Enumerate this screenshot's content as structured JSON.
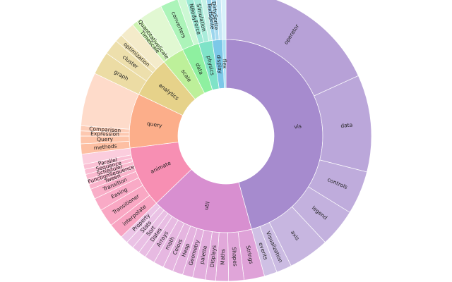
{
  "chart_data": {
    "type": "sunburst",
    "title": "",
    "start_angle_deg": 0,
    "direction": "clockwise",
    "colors": {
      "vis": "#a68bce",
      "util": "#d88fd0",
      "animate": "#f78fb3",
      "query": "#fcae8a",
      "analytics": "#e6d28a",
      "scale": "#bdf09a",
      "data": "#8ef0a0",
      "physics": "#7fe3c8",
      "display": "#7cc8e8",
      "flex": "#a8dff4"
    },
    "inner": [
      {
        "name": "vis",
        "value": 161
      },
      {
        "name": "util",
        "value": 60
      },
      {
        "name": "animate",
        "value": 36
      },
      {
        "name": "query",
        "value": 32
      },
      {
        "name": "analytics",
        "value": 24
      },
      {
        "name": "scale",
        "value": 13
      },
      {
        "name": "data",
        "value": 10
      },
      {
        "name": "physics",
        "value": 8
      },
      {
        "name": "display",
        "value": 6
      },
      {
        "name": "flex",
        "value": 2
      }
    ],
    "outer": [
      {
        "parent": "vis",
        "name": "operator",
        "value": 64
      },
      {
        "parent": "vis",
        "name": "data",
        "value": 38
      },
      {
        "parent": "vis",
        "name": "controls",
        "value": 17
      },
      {
        "parent": "vis",
        "name": "legend",
        "value": 15
      },
      {
        "parent": "vis",
        "name": "axis",
        "value": 16
      },
      {
        "parent": "vis",
        "name": "Visualization",
        "value": 6
      },
      {
        "parent": "vis",
        "name": "events",
        "value": 5
      },
      {
        "parent": "util",
        "name": "Strings",
        "value": 8
      },
      {
        "parent": "util",
        "name": "Shapes",
        "value": 6
      },
      {
        "parent": "util",
        "name": "Maths",
        "value": 5
      },
      {
        "parent": "util",
        "name": "Displays",
        "value": 4
      },
      {
        "parent": "util",
        "name": "palette",
        "value": 5
      },
      {
        "parent": "util",
        "name": "Geometry",
        "value": 4
      },
      {
        "parent": "util",
        "name": "Heap",
        "value": 4
      },
      {
        "parent": "util",
        "name": "Colors",
        "value": 4
      },
      {
        "parent": "util",
        "name": "math",
        "value": 4
      },
      {
        "parent": "util",
        "name": "Arrays",
        "value": 4
      },
      {
        "parent": "util",
        "name": "Dates",
        "value": 3
      },
      {
        "parent": "util",
        "name": "Sort",
        "value": 3
      },
      {
        "parent": "util",
        "name": "Stats",
        "value": 3
      },
      {
        "parent": "util",
        "name": "Property",
        "value": 3
      },
      {
        "parent": "animate",
        "name": "interpolate",
        "value": 6
      },
      {
        "parent": "animate",
        "name": "Transitioner",
        "value": 7
      },
      {
        "parent": "animate",
        "name": "Easing",
        "value": 5
      },
      {
        "parent": "animate",
        "name": "Transition",
        "value": 4
      },
      {
        "parent": "animate",
        "name": "Tween",
        "value": 2
      },
      {
        "parent": "animate",
        "name": "FunctionSequence",
        "value": 2
      },
      {
        "parent": "animate",
        "name": "Scheduler",
        "value": 2
      },
      {
        "parent": "animate",
        "name": "Sequence",
        "value": 2
      },
      {
        "parent": "animate",
        "name": "Parallel",
        "value": 2
      },
      {
        "parent": "animate",
        "name": "",
        "value": 4
      },
      {
        "parent": "query",
        "name": "methods",
        "value": 4
      },
      {
        "parent": "query",
        "name": "Query",
        "value": 3
      },
      {
        "parent": "query",
        "name": "Expression",
        "value": 2
      },
      {
        "parent": "query",
        "name": "Comparison",
        "value": 2
      },
      {
        "parent": "query",
        "name": "",
        "value": 21
      },
      {
        "parent": "analytics",
        "name": "graph",
        "value": 9
      },
      {
        "parent": "analytics",
        "name": "cluster",
        "value": 6
      },
      {
        "parent": "analytics",
        "name": "optimization",
        "value": 3
      },
      {
        "parent": "analytics",
        "name": "",
        "value": 6
      },
      {
        "parent": "scale",
        "name": "TimeScale",
        "value": 2
      },
      {
        "parent": "scale",
        "name": "QuantitativeScale",
        "value": 2
      },
      {
        "parent": "scale",
        "name": "",
        "value": 9
      },
      {
        "parent": "data",
        "name": "converters",
        "value": 7
      },
      {
        "parent": "data",
        "name": "",
        "value": 3
      },
      {
        "parent": "physics",
        "name": "NBodyForce",
        "value": 3
      },
      {
        "parent": "physics",
        "name": "Simulation",
        "value": 3
      },
      {
        "parent": "physics",
        "name": "",
        "value": 2
      },
      {
        "parent": "display",
        "name": "TextSprite",
        "value": 2
      },
      {
        "parent": "display",
        "name": "DirtySprite",
        "value": 2
      },
      {
        "parent": "display",
        "name": "",
        "value": 2
      },
      {
        "parent": "flex",
        "name": "",
        "value": 2
      }
    ]
  }
}
